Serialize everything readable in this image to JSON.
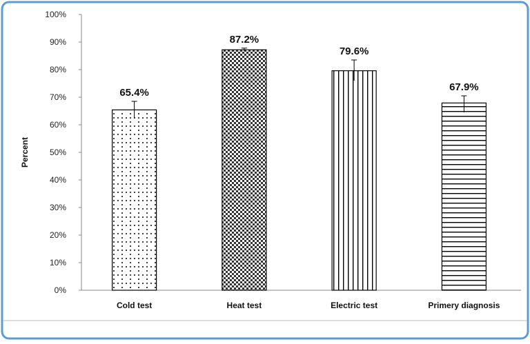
{
  "chart_data": {
    "type": "bar",
    "title": "",
    "xlabel": "",
    "ylabel": "Percent",
    "ylim": [
      0,
      100
    ],
    "yticks": [
      "0%",
      "10%",
      "20%",
      "30%",
      "40%",
      "50%",
      "60%",
      "70%",
      "80%",
      "90%",
      "100%"
    ],
    "categories": [
      "Cold test",
      "Heat test",
      "Electric test",
      "Primery diagnosis"
    ],
    "values": [
      65.4,
      87.2,
      79.6,
      67.9
    ],
    "data_labels": [
      "65.4%",
      "87.2%",
      "79.6%",
      "67.9%"
    ],
    "error_upper": [
      68.5,
      87.8,
      83.5,
      70.5
    ],
    "error_lower": [
      62.5,
      86.8,
      76.0,
      64.5
    ],
    "bar_patterns": [
      "dots",
      "checker",
      "vertical-stripes",
      "horizontal-stripes"
    ],
    "grid": false,
    "legend": "none",
    "colors": {
      "border": "#5b9bd5",
      "bar_stroke": "#000000",
      "axis": "#888888"
    }
  }
}
